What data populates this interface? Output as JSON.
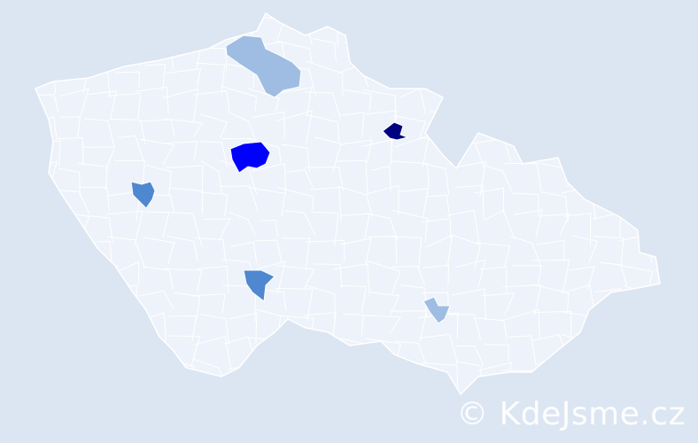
{
  "map": {
    "background_color": "#dce6f2",
    "region_color": "#eef2fa",
    "border_color": "#ffffff",
    "highlighted_regions": [
      {
        "color": "#0000ff",
        "level": "highest"
      },
      {
        "color": "#000080",
        "level": "highest"
      },
      {
        "color": "#4f88d0",
        "level": "medium"
      },
      {
        "color": "#4f88d0",
        "level": "medium"
      },
      {
        "color": "#9fbde2",
        "level": "low"
      },
      {
        "color": "#9fbde2",
        "level": "low"
      }
    ]
  },
  "watermark": {
    "text": "© KdeJsme.cz"
  }
}
